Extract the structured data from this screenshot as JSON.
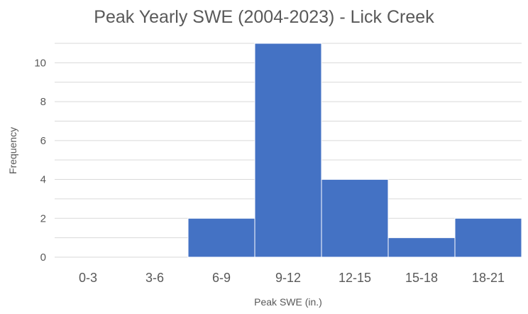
{
  "chart_data": {
    "type": "bar",
    "title": "Peak Yearly SWE (2004-2023) - Lick Creek",
    "xlabel": "Peak SWE (in.)",
    "ylabel": "Frequency",
    "categories": [
      "0-3",
      "3-6",
      "6-9",
      "9-12",
      "12-15",
      "15-18",
      "18-21"
    ],
    "values": [
      0,
      0,
      2,
      11,
      4,
      1,
      2
    ],
    "ylim": [
      0,
      11
    ],
    "yticks": [
      0,
      2,
      4,
      6,
      8,
      10
    ],
    "grid": true,
    "legend": "none",
    "bar_color": "#4472C4",
    "grid_color": "#d9d9d9",
    "text_color": "#595959"
  }
}
